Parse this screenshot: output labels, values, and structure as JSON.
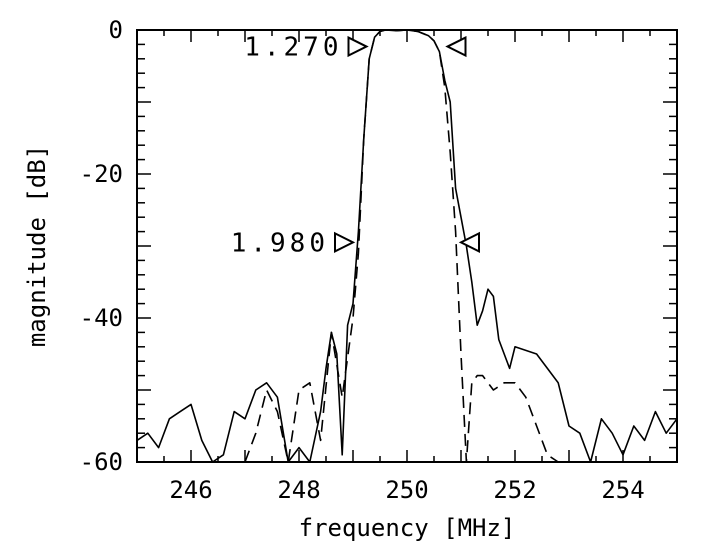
{
  "chart_data": {
    "type": "line",
    "title": "",
    "xlabel": "frequency [MHz]",
    "ylabel": "magnitude [dB]",
    "xlim": [
      245,
      255
    ],
    "ylim": [
      -60,
      0
    ],
    "x_ticks": [
      246,
      248,
      250,
      252,
      254
    ],
    "x_tick_labels": [
      "246",
      "248",
      "250",
      "252",
      "254"
    ],
    "y_ticks": [
      0,
      -20,
      -40,
      -60
    ],
    "y_tick_labels": [
      "0",
      "-20",
      "-40",
      "-60"
    ],
    "grid": false,
    "legend": "none",
    "series": [
      {
        "style": "solid",
        "x": [
          245.0,
          245.2,
          245.4,
          245.6,
          245.8,
          246.0,
          246.2,
          246.4,
          246.6,
          246.8,
          247.0,
          247.2,
          247.4,
          247.6,
          247.8,
          248.0,
          248.2,
          248.4,
          248.5,
          248.6,
          248.7,
          248.8,
          248.9,
          249.0,
          249.1,
          249.2,
          249.3,
          249.4,
          249.5,
          249.6,
          249.8,
          250.0,
          250.2,
          250.4,
          250.5,
          250.6,
          250.7,
          250.8,
          250.9,
          251.0,
          251.1,
          251.2,
          251.3,
          251.4,
          251.5,
          251.6,
          251.7,
          251.8,
          251.9,
          252.0,
          252.2,
          252.4,
          252.6,
          252.8,
          253.0,
          253.2,
          253.4,
          253.6,
          253.8,
          254.0,
          254.2,
          254.4,
          254.6,
          254.8,
          255.0
        ],
        "y": [
          -57,
          -56,
          -58,
          -54,
          -53,
          -52,
          -57,
          -60,
          -59,
          -53,
          -54,
          -50,
          -49,
          -51,
          -60,
          -58,
          -60,
          -53,
          -47,
          -42,
          -45,
          -59,
          -41,
          -38,
          -28,
          -15,
          -4,
          -1,
          -0.2,
          0,
          -0.1,
          0,
          -0.2,
          -0.8,
          -1.5,
          -3,
          -7,
          -10,
          -22,
          -26,
          -30,
          -35,
          -41,
          -39,
          -36,
          -37,
          -43,
          -45,
          -47,
          -44,
          -44.5,
          -45,
          -47,
          -49,
          -55,
          -56,
          -60,
          -54,
          -56,
          -59,
          -55,
          -57,
          -53,
          -56,
          -54
        ]
      },
      {
        "style": "dashed",
        "x": [
          247.0,
          247.2,
          247.4,
          247.6,
          247.8,
          248.0,
          248.2,
          248.4,
          248.6,
          248.8,
          249.0,
          249.1,
          249.2,
          249.3,
          249.4,
          249.5,
          249.6,
          249.8,
          250.0,
          250.2,
          250.4,
          250.5,
          250.6,
          250.7,
          250.8,
          250.9,
          251.0,
          251.1,
          251.2,
          251.3,
          251.4,
          251.6,
          251.8,
          252.0,
          252.2,
          252.4,
          252.6,
          252.8
        ],
        "y": [
          -60,
          -56,
          -50,
          -53,
          -60,
          -50,
          -49,
          -57,
          -42,
          -51,
          -40,
          -31,
          -15,
          -4,
          -1,
          -0.2,
          0,
          -0.1,
          0,
          -0.2,
          -0.8,
          -1.5,
          -3,
          -8,
          -17,
          -28,
          -45,
          -60,
          -49,
          -48,
          -48,
          -50,
          -49,
          -49,
          -51,
          -55,
          -59,
          -60
        ]
      }
    ],
    "annotations": [
      {
        "label": "1.270",
        "y": -2.3,
        "x_left": 249.25,
        "x_right": 250.75
      },
      {
        "label": "1.980",
        "y": -29.5,
        "x_left": 249.0,
        "x_right": 251.0
      }
    ]
  }
}
